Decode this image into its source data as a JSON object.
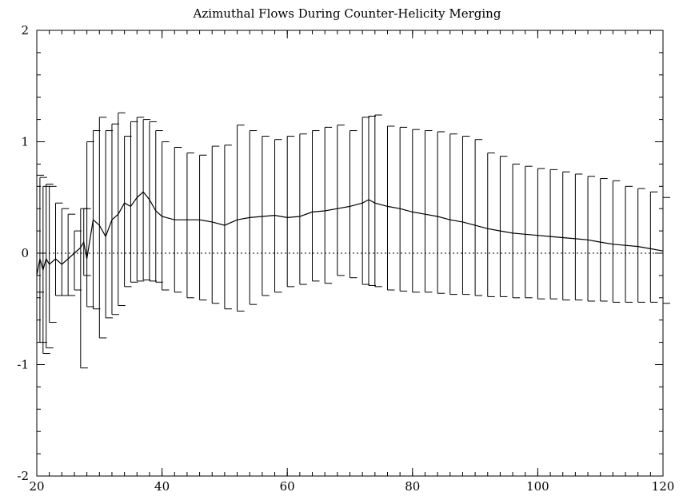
{
  "chart_data": {
    "type": "line",
    "title": "Azimuthal Flows During Counter-Helicity Merging",
    "xlabel": "",
    "ylabel": "",
    "xlim": [
      20,
      120
    ],
    "ylim": [
      -2,
      2
    ],
    "xticks": [
      20,
      40,
      60,
      80,
      100,
      120
    ],
    "xtick_labels": [
      "20",
      "40",
      "60",
      "80",
      "100",
      "120"
    ],
    "yticks": [
      -2,
      -1,
      0,
      1,
      2
    ],
    "ytick_labels": [
      "-2",
      "-1",
      "0",
      "1",
      "2"
    ],
    "x_minor_step": 2,
    "y_minor_step": 0.2,
    "grid": false,
    "zero_line": {
      "y": 0,
      "style": "dotted"
    },
    "series": [
      {
        "x": [
          20,
          20.5,
          21,
          21.5,
          22,
          23,
          24,
          25,
          26,
          27,
          27.5,
          28,
          29,
          30,
          31,
          32,
          33,
          34,
          35,
          36,
          37,
          38,
          39,
          40,
          42,
          44,
          46,
          48,
          50,
          52,
          54,
          56,
          58,
          60,
          62,
          64,
          66,
          68,
          70,
          72,
          73,
          74,
          76,
          78,
          80,
          82,
          84,
          86,
          88,
          90,
          92,
          94,
          96,
          98,
          100,
          102,
          104,
          106,
          108,
          110,
          112,
          114,
          116,
          118,
          120
        ],
        "y": [
          -0.2,
          -0.05,
          -0.15,
          -0.05,
          -0.1,
          -0.05,
          -0.1,
          -0.05,
          0.0,
          0.05,
          0.1,
          -0.05,
          0.3,
          0.25,
          0.15,
          0.3,
          0.35,
          0.45,
          0.42,
          0.5,
          0.55,
          0.48,
          0.38,
          0.33,
          0.3,
          0.3,
          0.3,
          0.28,
          0.25,
          0.3,
          0.32,
          0.33,
          0.34,
          0.32,
          0.33,
          0.37,
          0.38,
          0.4,
          0.42,
          0.45,
          0.48,
          0.45,
          0.42,
          0.4,
          0.37,
          0.35,
          0.33,
          0.3,
          0.28,
          0.25,
          0.22,
          0.2,
          0.18,
          0.17,
          0.16,
          0.15,
          0.14,
          0.13,
          0.12,
          0.1,
          0.08,
          0.07,
          0.06,
          0.04,
          0.02
        ],
        "upper": [
          0.7,
          0.68,
          0.6,
          0.62,
          0.6,
          0.45,
          0.4,
          0.35,
          0.2,
          0.4,
          0.4,
          1.0,
          1.1,
          1.22,
          1.1,
          1.16,
          1.26,
          1.05,
          1.18,
          1.22,
          1.2,
          1.18,
          1.1,
          1.0,
          0.95,
          0.9,
          0.88,
          0.96,
          0.97,
          1.15,
          1.1,
          1.05,
          1.02,
          1.05,
          1.07,
          1.1,
          1.13,
          1.15,
          1.1,
          1.22,
          1.23,
          1.24,
          1.14,
          1.13,
          1.11,
          1.1,
          1.09,
          1.07,
          1.05,
          1.02,
          0.9,
          0.87,
          0.8,
          0.78,
          0.76,
          0.75,
          0.73,
          0.71,
          0.69,
          0.67,
          0.65,
          0.6,
          0.58,
          0.55,
          0.5
        ],
        "lower": [
          -0.35,
          -0.8,
          -0.9,
          -0.85,
          -0.62,
          -0.38,
          -0.38,
          -0.38,
          -0.33,
          -1.03,
          -0.2,
          -0.48,
          -0.5,
          -0.76,
          -0.58,
          -0.55,
          -0.47,
          -0.3,
          -0.26,
          -0.25,
          -0.24,
          -0.25,
          -0.26,
          -0.33,
          -0.35,
          -0.4,
          -0.42,
          -0.45,
          -0.5,
          -0.52,
          -0.46,
          -0.38,
          -0.35,
          -0.3,
          -0.28,
          -0.25,
          -0.27,
          -0.2,
          -0.22,
          -0.28,
          -0.29,
          -0.3,
          -0.33,
          -0.34,
          -0.35,
          -0.35,
          -0.36,
          -0.37,
          -0.37,
          -0.38,
          -0.39,
          -0.39,
          -0.4,
          -0.4,
          -0.41,
          -0.41,
          -0.42,
          -0.42,
          -0.43,
          -0.43,
          -0.44,
          -0.44,
          -0.44,
          -0.44,
          -0.45
        ]
      }
    ]
  }
}
